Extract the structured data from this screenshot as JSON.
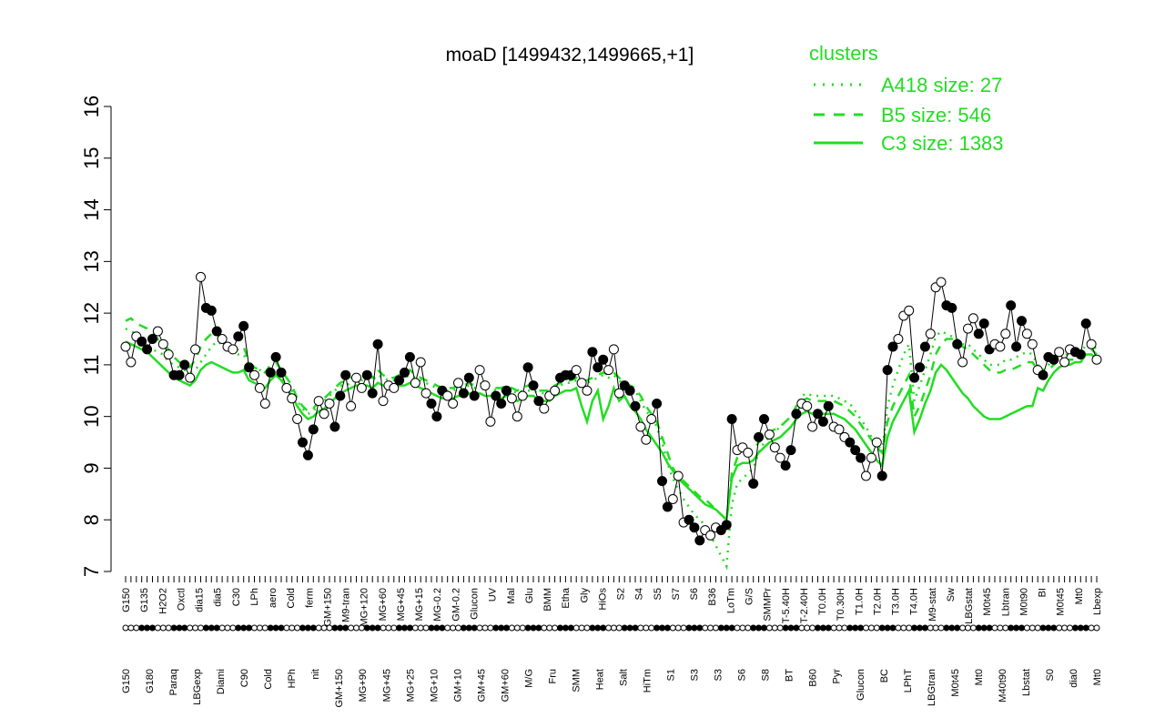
{
  "chart_data": {
    "type": "line",
    "title": "moaD [1499432,1499665,+1]",
    "xlabel": "",
    "ylabel": "",
    "ylim": [
      7,
      16
    ],
    "yticks": [
      7,
      8,
      9,
      10,
      11,
      12,
      13,
      14,
      15,
      16
    ],
    "legend": {
      "title": "clusters",
      "placement": "top-right",
      "entries": [
        {
          "label": "A418 size: 27",
          "style": "dotted"
        },
        {
          "label": "B5 size: 546",
          "style": "dashed"
        },
        {
          "label": "C3 size: 1383",
          "style": "solid"
        }
      ]
    },
    "x_labels_top": [
      "G150",
      "G135",
      "H2O2",
      "Oxctl",
      "dia15",
      "dia5",
      "C30",
      "LPh",
      "aero",
      "Cold",
      "ferm",
      "GM+150",
      "M9-tran",
      "MG+120",
      "MG+60",
      "MG+45",
      "MG+15",
      "MG-0.2",
      "GM-0.2",
      "Glucon",
      "UV",
      "Mal",
      "Glu",
      "BMM",
      "Etha",
      "Gly",
      "HiOs",
      "S2",
      "S4",
      "S5",
      "S7",
      "S6",
      "B36",
      "LoTm",
      "G/S",
      "SMMPr",
      "T-5.40H",
      "T-2.40H",
      "T0.0H",
      "T0.30H",
      "T1.0H",
      "T2.0H",
      "T3.0H",
      "T4.0H",
      "M9-stat",
      "Sw",
      "LBGstat",
      "M0t45",
      "Lbtran",
      "M0t90",
      "BI",
      "M0t45",
      "Mt0",
      "Lbexp"
    ],
    "x_labels_bottom": [
      "G150",
      "G180",
      "Paraq",
      "LBGexp",
      "Diami",
      "C90",
      "Cold",
      "HPh",
      "nit",
      "GM+150",
      "MG+90",
      "MG+45",
      "MG+25",
      "MG+10",
      "GM+10",
      "GM+45",
      "GM+60",
      "M/G",
      "Fru",
      "SMM",
      "Heat",
      "Salt",
      "HiTm",
      "S1",
      "S3",
      "S3",
      "S6",
      "S8",
      "BT",
      "B60",
      "Pyr",
      "Glucon",
      "BC",
      "LPhT",
      "LBGtran",
      "M0t45",
      "Mt0",
      "M40t90",
      "Lbstat",
      "S0",
      "dia0",
      "Mt0"
    ],
    "series": [
      {
        "style": "points",
        "values": [
          11.35,
          11.05,
          11.55,
          11.45,
          11.3,
          11.5,
          11.65,
          11.4,
          11.2,
          10.8,
          10.8,
          11.0,
          10.75,
          11.3,
          12.7,
          12.1,
          12.05,
          11.65,
          11.5,
          11.35,
          11.3,
          11.55,
          11.75,
          10.95,
          10.8,
          10.55,
          10.25,
          10.85,
          11.15,
          10.85,
          10.55,
          10.35,
          9.95,
          9.5,
          9.25,
          9.75,
          10.3,
          10.05,
          10.25,
          9.8,
          10.4,
          10.8,
          10.2,
          10.75,
          10.55,
          10.8,
          10.45,
          11.4,
          10.3,
          10.6,
          10.55,
          10.7,
          10.85,
          11.15,
          10.65,
          11.05,
          10.45,
          10.25,
          10.0,
          10.5,
          10.4,
          10.25,
          10.65,
          10.45,
          10.75,
          10.4,
          10.9,
          10.6,
          9.9,
          10.4,
          10.25,
          10.5,
          10.35,
          10.0,
          10.4,
          10.95,
          10.6,
          10.3,
          10.15,
          10.4,
          10.5,
          10.75,
          10.8,
          10.8,
          10.9,
          10.65,
          10.5,
          11.25,
          10.95,
          11.1,
          10.9,
          11.3,
          10.45,
          10.6,
          10.5,
          10.2,
          9.8,
          9.55,
          9.95,
          10.25,
          8.75,
          8.25,
          8.4,
          8.85,
          7.95,
          8.0,
          7.85,
          7.6,
          7.8,
          7.7,
          7.85,
          7.8,
          7.9,
          9.95,
          9.35,
          9.4,
          9.3,
          8.7,
          9.6,
          9.95,
          9.65,
          9.4,
          9.2,
          9.05,
          9.35,
          10.05,
          10.25,
          10.2,
          9.8,
          10.05,
          9.9,
          10.2,
          9.8,
          9.75,
          9.6,
          9.5,
          9.35,
          9.2,
          8.85,
          9.2,
          9.5,
          8.85,
          10.9,
          11.35,
          11.5,
          11.95,
          12.05,
          10.75,
          10.95,
          11.35,
          11.6,
          12.5,
          12.6,
          12.15,
          12.1,
          11.4,
          11.05,
          11.7,
          11.9,
          11.6,
          11.8,
          11.3,
          11.4,
          11.35,
          11.6,
          12.15,
          11.35,
          11.85,
          11.6,
          11.4,
          10.9,
          10.8,
          11.15,
          11.1,
          11.25,
          11.05,
          11.3,
          11.25,
          11.2,
          11.8,
          11.4,
          11.1
        ]
      },
      {
        "name": "A418 size: 27",
        "style": "dotted",
        "values": [
          11.7,
          11.65,
          11.6,
          11.5,
          11.4,
          11.3,
          11.25,
          11.2,
          11.05,
          11.0,
          10.95,
          10.9,
          10.85,
          10.9,
          11.05,
          11.2,
          11.35,
          11.45,
          11.4,
          11.3,
          11.25,
          11.2,
          11.2,
          11.0,
          10.95,
          10.9,
          10.85,
          10.9,
          10.9,
          10.75,
          10.65,
          10.5,
          10.3,
          10.15,
          10.05,
          10.1,
          10.25,
          10.3,
          10.4,
          10.5,
          10.6,
          10.6,
          10.65,
          10.7,
          10.7,
          10.75,
          10.7,
          10.8,
          10.75,
          10.7,
          10.7,
          10.75,
          10.75,
          10.8,
          10.75,
          10.7,
          10.65,
          10.6,
          10.55,
          10.5,
          10.5,
          10.5,
          10.55,
          10.55,
          10.6,
          10.55,
          10.6,
          10.55,
          10.55,
          10.5,
          10.5,
          10.55,
          10.5,
          10.45,
          10.5,
          10.5,
          10.5,
          10.45,
          10.45,
          10.45,
          10.55,
          10.6,
          10.65,
          10.65,
          10.7,
          10.65,
          10.65,
          10.7,
          10.75,
          10.8,
          10.75,
          10.8,
          10.7,
          10.6,
          10.55,
          10.5,
          10.3,
          10.1,
          10.0,
          9.8,
          9.5,
          9.1,
          8.8,
          8.6,
          8.4,
          8.25,
          8.1,
          8.0,
          7.9,
          7.7,
          7.5,
          7.3,
          7.1,
          8.3,
          8.7,
          8.8,
          8.9,
          9.0,
          9.3,
          9.5,
          9.6,
          9.7,
          9.8,
          9.9,
          10.0,
          10.2,
          10.4,
          10.45,
          10.4,
          10.4,
          10.4,
          10.4,
          10.4,
          10.35,
          10.3,
          10.25,
          10.1,
          9.95,
          9.8,
          9.6,
          9.5,
          9.3,
          10.2,
          10.6,
          10.9,
          11.2,
          11.4,
          10.3,
          10.6,
          10.9,
          11.2,
          11.55,
          11.65,
          11.6,
          11.55,
          11.5,
          11.4,
          11.4,
          11.3,
          11.2,
          11.1,
          11.0,
          11.0,
          11.0,
          11.1,
          11.1,
          11.15,
          11.2,
          11.25,
          11.2,
          11.0,
          10.9,
          11.0,
          11.1,
          11.2,
          11.2,
          11.2,
          11.2,
          11.2,
          11.4,
          11.4,
          11.3
        ]
      },
      {
        "name": "B5 size: 546",
        "style": "dashed",
        "values": [
          11.85,
          11.9,
          11.8,
          11.75,
          11.7,
          11.6,
          11.5,
          11.4,
          11.3,
          11.15,
          11.05,
          11.0,
          10.95,
          11.1,
          11.35,
          11.5,
          11.6,
          11.55,
          11.45,
          11.35,
          11.3,
          11.3,
          11.35,
          11.05,
          10.95,
          10.9,
          10.85,
          11.0,
          11.05,
          10.9,
          10.75,
          10.6,
          10.35,
          10.2,
          10.1,
          10.15,
          10.3,
          10.35,
          10.45,
          10.55,
          10.65,
          10.7,
          10.75,
          10.8,
          10.8,
          10.8,
          10.75,
          10.9,
          10.8,
          10.75,
          10.75,
          10.8,
          10.8,
          10.9,
          10.8,
          10.75,
          10.7,
          10.65,
          10.6,
          10.55,
          10.55,
          10.55,
          10.6,
          10.6,
          10.65,
          10.6,
          10.65,
          10.6,
          10.6,
          10.55,
          10.55,
          10.6,
          10.55,
          10.5,
          10.55,
          10.6,
          10.6,
          10.5,
          10.5,
          10.5,
          10.6,
          10.65,
          10.7,
          10.7,
          10.75,
          10.7,
          10.7,
          10.75,
          10.8,
          10.85,
          10.8,
          10.85,
          10.75,
          10.65,
          10.6,
          10.55,
          10.4,
          10.2,
          10.05,
          9.9,
          9.6,
          9.3,
          9.0,
          8.85,
          8.75,
          8.65,
          8.55,
          8.45,
          8.4,
          8.3,
          8.2,
          8.1,
          8.0,
          8.9,
          9.2,
          9.3,
          9.3,
          9.35,
          9.5,
          9.6,
          9.7,
          9.75,
          9.8,
          9.9,
          10.0,
          10.2,
          10.3,
          10.35,
          10.3,
          10.3,
          10.3,
          10.3,
          10.3,
          10.25,
          10.2,
          10.1,
          10.0,
          9.85,
          9.7,
          9.55,
          9.4,
          9.3,
          9.9,
          10.2,
          10.4,
          10.6,
          10.8,
          10.0,
          10.2,
          10.5,
          10.8,
          11.2,
          11.4,
          11.5,
          11.5,
          11.45,
          11.35,
          11.3,
          11.2,
          11.1,
          11.0,
          10.9,
          10.85,
          10.85,
          10.9,
          10.9,
          10.95,
          11.0,
          11.05,
          11.05,
          10.9,
          10.8,
          10.9,
          11.0,
          11.1,
          11.1,
          11.1,
          11.1,
          11.1,
          11.3,
          11.3,
          11.2
        ]
      },
      {
        "name": "C3 size: 1383",
        "style": "solid",
        "values": [
          11.45,
          11.4,
          11.35,
          11.3,
          11.25,
          11.15,
          11.05,
          10.95,
          10.85,
          10.75,
          10.7,
          10.65,
          10.6,
          10.7,
          10.9,
          11.0,
          11.05,
          11.0,
          10.95,
          10.9,
          10.85,
          10.85,
          10.9,
          10.7,
          10.65,
          10.6,
          10.55,
          10.7,
          10.8,
          10.7,
          10.55,
          10.4,
          10.2,
          10.05,
          9.95,
          10.0,
          10.1,
          10.15,
          10.25,
          10.35,
          10.45,
          10.5,
          10.55,
          10.6,
          10.6,
          10.6,
          10.55,
          10.65,
          10.6,
          10.55,
          10.55,
          10.6,
          10.6,
          10.65,
          10.6,
          10.55,
          10.5,
          10.45,
          10.4,
          10.35,
          10.35,
          10.35,
          10.4,
          10.4,
          10.45,
          10.4,
          10.45,
          10.4,
          10.4,
          10.35,
          10.35,
          10.4,
          10.35,
          10.3,
          10.35,
          10.4,
          10.4,
          10.3,
          10.3,
          10.3,
          10.4,
          10.45,
          10.5,
          10.5,
          10.55,
          10.2,
          9.9,
          10.3,
          10.5,
          9.95,
          10.2,
          10.55,
          10.3,
          10.4,
          10.2,
          10.1,
          9.95,
          9.75,
          9.6,
          9.45,
          9.3,
          9.1,
          8.95,
          8.8,
          8.7,
          8.6,
          8.5,
          8.4,
          8.3,
          8.25,
          8.2,
          8.1,
          8.0,
          8.8,
          9.05,
          9.1,
          9.1,
          9.15,
          9.3,
          9.4,
          9.5,
          9.55,
          9.6,
          9.7,
          9.8,
          9.95,
          10.05,
          10.1,
          10.05,
          10.05,
          10.05,
          10.05,
          10.05,
          10.0,
          9.95,
          9.85,
          9.75,
          9.6,
          9.45,
          9.3,
          9.15,
          9.05,
          9.6,
          9.9,
          10.1,
          10.3,
          10.5,
          9.7,
          9.95,
          10.25,
          10.5,
          10.85,
          11.0,
          10.9,
          10.75,
          10.6,
          10.45,
          10.35,
          10.2,
          10.1,
          10.0,
          9.95,
          9.95,
          9.95,
          10.0,
          10.05,
          10.1,
          10.15,
          10.2,
          10.2,
          10.55,
          10.5,
          10.7,
          10.85,
          10.95,
          11.0,
          11.0,
          11.05,
          11.05,
          11.2,
          11.2,
          11.1
        ]
      }
    ]
  }
}
